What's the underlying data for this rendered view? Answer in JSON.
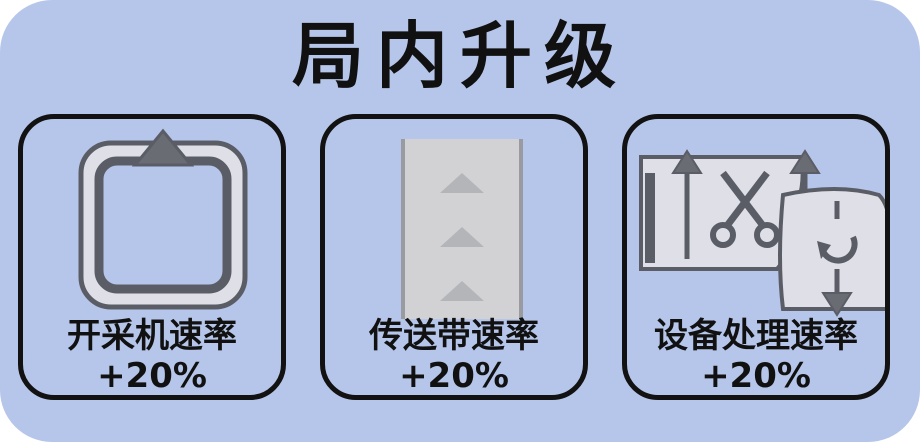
{
  "title": "局内升级",
  "upgrades": [
    {
      "label": "开采机速率",
      "value": "+20%",
      "icon": "mining-machine-icon"
    },
    {
      "label": "传送带速率",
      "value": "+20%",
      "icon": "conveyor-belt-icon"
    },
    {
      "label": "设备处理速率",
      "value": "+20%",
      "icon": "device-processing-icon"
    }
  ],
  "colors": {
    "panel": "#b6c6ea",
    "border": "#121212",
    "icon_fill": "#e2e3ea",
    "icon_stroke": "#5b5d66",
    "belt": "#cfcfd1"
  }
}
